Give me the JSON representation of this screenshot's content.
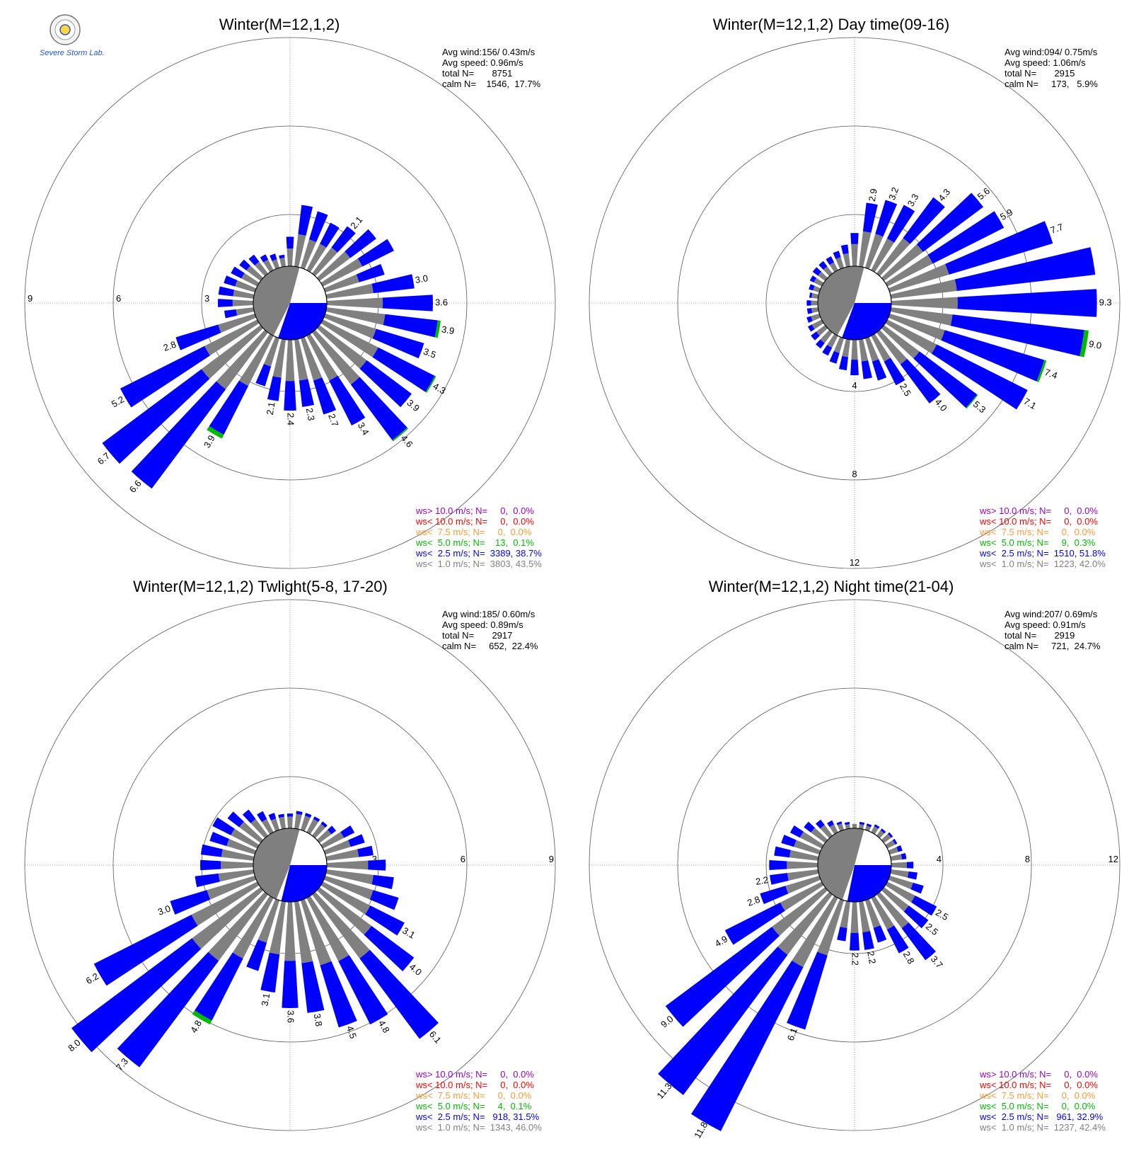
{
  "logo": {
    "text": "Severe Storm Lab."
  },
  "legend_labels": [
    "ws> 10.0 m/s; N=",
    "ws< 10.0 m/s; N=",
    "ws<  7.5 m/s; N=",
    "ws<  5.0 m/s; N=",
    "ws<  2.5 m/s; N=",
    "ws<  1.0 m/s; N="
  ],
  "colors": {
    "calm": "#7f7f7f",
    "ws_lt_1": "#808080",
    "ws_lt_2_5": "#0000ff",
    "ws_lt_5": "#00bb00",
    "ws_lt_7_5": "#ff9933",
    "ws_lt_10": "#ff0000",
    "ws_gt_10": "#9900cc"
  },
  "chart_data": [
    {
      "type": "wind-rose",
      "title": "Winter(M=12,1,2)",
      "stats": {
        "avg_wind": "Avg wind:156/ 0.43m/s",
        "avg_speed": "Avg speed: 0.96m/s",
        "total": "total N=       8751",
        "calm": "calm N=    1546,  17.7%"
      },
      "calm_pct": 17.7,
      "ring_values": [
        3,
        6,
        9
      ],
      "ring_labels": [
        "3",
        "6",
        "9"
      ],
      "ring_label_side": "left",
      "direction_start_deg": 0,
      "direction_step_deg": 10,
      "freq_pct": [
        1.0,
        2.1,
        2.0,
        1.8,
        2.0,
        2.4,
        2.7,
        2.1,
        3.0,
        3.6,
        3.9,
        3.5,
        4.3,
        3.9,
        4.6,
        3.4,
        2.7,
        2.3,
        2.4,
        2.1,
        1.7,
        3.9,
        6.6,
        6.7,
        5.2,
        2.8,
        1.0,
        1.2,
        1.2,
        1.1,
        1.0,
        0.9,
        0.8,
        0.6,
        0.5,
        0.4
      ],
      "gray_pct": [
        0.6,
        1.1,
        1.0,
        1.0,
        1.1,
        1.3,
        1.5,
        1.2,
        1.6,
        1.9,
        2.0,
        1.8,
        2.1,
        2.0,
        2.2,
        1.7,
        1.5,
        1.4,
        1.4,
        1.3,
        1.0,
        1.9,
        2.4,
        2.5,
        2.0,
        1.3,
        0.6,
        0.7,
        0.7,
        0.7,
        0.6,
        0.6,
        0.5,
        0.4,
        0.3,
        0.3
      ],
      "green_pct": [
        0,
        0,
        0,
        0,
        0,
        0,
        0,
        0,
        0,
        0,
        0.1,
        0,
        0.05,
        0,
        0.05,
        0,
        0,
        0,
        0,
        0,
        0,
        0.15,
        0,
        0,
        0,
        0,
        0,
        0,
        0,
        0,
        0,
        0,
        0,
        0,
        0,
        0
      ],
      "labeled_bars": [
        {
          "dir": 40,
          "label": "2.1"
        },
        {
          "dir": 80,
          "label": "3.0"
        },
        {
          "dir": 90,
          "label": "3.6"
        },
        {
          "dir": 100,
          "label": "3.9"
        },
        {
          "dir": 110,
          "label": "3.5"
        },
        {
          "dir": 120,
          "label": "4.3"
        },
        {
          "dir": 130,
          "label": "3.9"
        },
        {
          "dir": 140,
          "label": "4.6"
        },
        {
          "dir": 150,
          "label": "3.4"
        },
        {
          "dir": 160,
          "label": "2.7"
        },
        {
          "dir": 170,
          "label": "2.3"
        },
        {
          "dir": 180,
          "label": "2.4"
        },
        {
          "dir": 190,
          "label": "2.1"
        },
        {
          "dir": 210,
          "label": "3.9"
        },
        {
          "dir": 220,
          "label": "6.6"
        },
        {
          "dir": 230,
          "label": "6.7"
        },
        {
          "dir": 240,
          "label": "5.2"
        },
        {
          "dir": 250,
          "label": "2.8"
        }
      ],
      "legend": [
        {
          "n": "0",
          "pct": "0.0%"
        },
        {
          "n": "0",
          "pct": "0.0%"
        },
        {
          "n": "0",
          "pct": "0.0%"
        },
        {
          "n": "13",
          "pct": "0.1%"
        },
        {
          "n": "3389",
          "pct": "38.7%"
        },
        {
          "n": "3803",
          "pct": "43.5%"
        }
      ]
    },
    {
      "type": "wind-rose",
      "title": "Winter(M=12,1,2) Day time(09-16)",
      "stats": {
        "avg_wind": "Avg wind:094/ 0.75m/s",
        "avg_speed": "Avg speed: 1.06m/s",
        "total": "total N=       2915",
        "calm": "calm N=     173,   5.9%"
      },
      "calm_pct": 5.9,
      "ring_values": [
        4,
        8,
        12
      ],
      "ring_labels": [
        "4",
        "8",
        "12"
      ],
      "ring_label_side": "bottom",
      "direction_start_deg": 0,
      "direction_step_deg": 10,
      "freq_pct": [
        1.5,
        2.9,
        3.2,
        3.3,
        4.3,
        5.6,
        5.9,
        7.7,
        9.3,
        9.3,
        9.0,
        7.4,
        7.1,
        5.3,
        4.0,
        2.5,
        2.0,
        1.8,
        1.6,
        1.4,
        1.2,
        1.0,
        0.9,
        0.8,
        0.7,
        0.6,
        0.5,
        0.5,
        0.4,
        0.5,
        0.6,
        0.7,
        0.7,
        0.7,
        0.8,
        1.0
      ],
      "gray_pct": [
        1.0,
        1.6,
        1.6,
        1.6,
        2.0,
        2.2,
        2.3,
        2.8,
        3.0,
        3.0,
        2.8,
        2.6,
        2.5,
        2.0,
        1.8,
        1.3,
        1.1,
        1.0,
        0.9,
        0.8,
        0.7,
        0.6,
        0.6,
        0.5,
        0.5,
        0.4,
        0.3,
        0.3,
        0.3,
        0.3,
        0.4,
        0.4,
        0.4,
        0.4,
        0.5,
        0.6
      ],
      "green_pct": [
        0,
        0,
        0,
        0,
        0,
        0,
        0,
        0,
        0,
        0,
        0.2,
        0.1,
        0,
        0.05,
        0,
        0,
        0,
        0,
        0,
        0,
        0,
        0,
        0,
        0,
        0,
        0,
        0,
        0,
        0,
        0,
        0,
        0,
        0,
        0,
        0,
        0
      ],
      "labeled_bars": [
        {
          "dir": 10,
          "label": "2.9"
        },
        {
          "dir": 20,
          "label": "3.2"
        },
        {
          "dir": 30,
          "label": "3.3"
        },
        {
          "dir": 40,
          "label": "4.3"
        },
        {
          "dir": 50,
          "label": "5.6"
        },
        {
          "dir": 60,
          "label": "5.9"
        },
        {
          "dir": 70,
          "label": "7.7"
        },
        {
          "dir": 90,
          "label": "9.3"
        },
        {
          "dir": 100,
          "label": "9.0"
        },
        {
          "dir": 110,
          "label": "7.4"
        },
        {
          "dir": 120,
          "label": "7.1"
        },
        {
          "dir": 130,
          "label": "5.3"
        },
        {
          "dir": 140,
          "label": "4.0"
        },
        {
          "dir": 150,
          "label": "2.5"
        }
      ],
      "legend": [
        {
          "n": "0",
          "pct": "0.0%"
        },
        {
          "n": "0",
          "pct": "0.0%"
        },
        {
          "n": "0",
          "pct": "0.0%"
        },
        {
          "n": "9",
          "pct": "0.3%"
        },
        {
          "n": "1510",
          "pct": "51.8%"
        },
        {
          "n": "1223",
          "pct": "42.0%"
        }
      ]
    },
    {
      "type": "wind-rose",
      "title": "Winter(M=12,1,2) Twlight(5-8, 17-20)",
      "stats": {
        "avg_wind": "Avg wind:185/ 0.60m/s",
        "avg_speed": "Avg speed: 0.89m/s",
        "total": "total N=       2917",
        "calm": "calm N=     652,  22.4%"
      },
      "calm_pct": 22.4,
      "ring_values": [
        3,
        6,
        9
      ],
      "ring_labels": [
        "3",
        "6",
        "9"
      ],
      "ring_label_side": "right",
      "direction_start_deg": 0,
      "direction_step_deg": 10,
      "freq_pct": [
        0.5,
        0.6,
        0.6,
        0.6,
        0.6,
        0.7,
        1.2,
        1.4,
        1.6,
        2.0,
        2.3,
        2.6,
        3.1,
        4.0,
        6.1,
        4.8,
        4.5,
        3.8,
        3.6,
        3.1,
        2.5,
        4.8,
        7.3,
        8.0,
        6.2,
        3.0,
        2.0,
        1.8,
        1.8,
        1.6,
        1.7,
        1.4,
        1.1,
        0.8,
        0.6,
        0.5
      ],
      "gray_pct": [
        0.4,
        0.5,
        0.5,
        0.5,
        0.5,
        0.5,
        0.8,
        0.9,
        1.1,
        1.4,
        1.6,
        1.7,
        1.8,
        2.2,
        2.7,
        2.4,
        2.3,
        2.1,
        2.0,
        1.8,
        1.5,
        2.3,
        2.8,
        2.9,
        2.5,
        1.7,
        1.2,
        1.1,
        1.1,
        1.0,
        1.0,
        0.9,
        0.7,
        0.5,
        0.4,
        0.4
      ],
      "green_pct": [
        0,
        0,
        0,
        0,
        0,
        0,
        0,
        0,
        0,
        0,
        0,
        0,
        0,
        0,
        0,
        0,
        0,
        0,
        0,
        0,
        0,
        0.15,
        0,
        0,
        0,
        0,
        0,
        0,
        0,
        0,
        0,
        0,
        0,
        0,
        0,
        0
      ],
      "labeled_bars": [
        {
          "dir": 120,
          "label": "3.1"
        },
        {
          "dir": 130,
          "label": "4.0"
        },
        {
          "dir": 140,
          "label": "6.1"
        },
        {
          "dir": 150,
          "label": "4.8"
        },
        {
          "dir": 160,
          "label": "4.5"
        },
        {
          "dir": 170,
          "label": "3.8"
        },
        {
          "dir": 180,
          "label": "3.6"
        },
        {
          "dir": 190,
          "label": "3.1"
        },
        {
          "dir": 210,
          "label": "4.8"
        },
        {
          "dir": 220,
          "label": "7.3"
        },
        {
          "dir": 230,
          "label": "8.0"
        },
        {
          "dir": 240,
          "label": "6.2"
        },
        {
          "dir": 250,
          "label": "3.0"
        }
      ],
      "legend": [
        {
          "n": "0",
          "pct": "0.0%"
        },
        {
          "n": "0",
          "pct": "0.0%"
        },
        {
          "n": "0",
          "pct": "0.0%"
        },
        {
          "n": "4",
          "pct": "0.1%"
        },
        {
          "n": "918",
          "pct": "31.5%"
        },
        {
          "n": "1343",
          "pct": "46.0%"
        }
      ]
    },
    {
      "type": "wind-rose",
      "title": "Winter(M=12,1,2) Night time(21-04)",
      "stats": {
        "avg_wind": "Avg wind:207/ 0.69m/s",
        "avg_speed": "Avg speed: 0.91m/s",
        "total": "total N=       2919",
        "calm": "calm N=     721,  24.7%"
      },
      "calm_pct": 24.7,
      "ring_values": [
        4,
        8,
        12
      ],
      "ring_labels": [
        "4",
        "8",
        "12"
      ],
      "ring_label_side": "right",
      "direction_start_deg": 0,
      "direction_step_deg": 10,
      "freq_pct": [
        0.2,
        0.3,
        0.3,
        0.4,
        0.4,
        0.5,
        0.5,
        0.6,
        0.7,
        1.0,
        1.2,
        1.6,
        2.5,
        2.5,
        3.7,
        2.8,
        2.0,
        2.2,
        2.2,
        1.8,
        6.1,
        11.8,
        11.3,
        9.0,
        4.9,
        2.8,
        2.2,
        2.2,
        2.0,
        1.8,
        1.6,
        1.2,
        0.9,
        0.6,
        0.4,
        0.3
      ],
      "gray_pct": [
        0.2,
        0.2,
        0.2,
        0.3,
        0.3,
        0.4,
        0.4,
        0.4,
        0.5,
        0.7,
        0.8,
        1.1,
        1.4,
        1.4,
        1.9,
        1.6,
        1.3,
        1.4,
        1.4,
        1.2,
        2.6,
        3.5,
        3.4,
        3.0,
        2.1,
        1.6,
        1.4,
        1.4,
        1.3,
        1.2,
        1.1,
        0.8,
        0.6,
        0.4,
        0.3,
        0.2
      ],
      "green_pct": [
        0,
        0,
        0,
        0,
        0,
        0,
        0,
        0,
        0,
        0,
        0,
        0,
        0,
        0,
        0,
        0,
        0,
        0,
        0,
        0,
        0,
        0,
        0,
        0,
        0,
        0,
        0,
        0,
        0,
        0,
        0,
        0,
        0,
        0,
        0,
        0
      ],
      "labeled_bars": [
        {
          "dir": 120,
          "label": "2.5"
        },
        {
          "dir": 130,
          "label": "2.5"
        },
        {
          "dir": 140,
          "label": "3.7"
        },
        {
          "dir": 150,
          "label": "2.8"
        },
        {
          "dir": 170,
          "label": "2.2"
        },
        {
          "dir": 180,
          "label": "2.2"
        },
        {
          "dir": 200,
          "label": "6.1"
        },
        {
          "dir": 210,
          "label": "11.8"
        },
        {
          "dir": 220,
          "label": "11.3"
        },
        {
          "dir": 230,
          "label": "9.0"
        },
        {
          "dir": 240,
          "label": "4.9"
        },
        {
          "dir": 250,
          "label": "2.8"
        },
        {
          "dir": 260,
          "label": "2.2"
        }
      ],
      "legend": [
        {
          "n": "0",
          "pct": "0.0%"
        },
        {
          "n": "0",
          "pct": "0.0%"
        },
        {
          "n": "0",
          "pct": "0.0%"
        },
        {
          "n": "0",
          "pct": "0.0%"
        },
        {
          "n": "961",
          "pct": "32.9%"
        },
        {
          "n": "1237",
          "pct": "42.4%"
        }
      ]
    }
  ]
}
